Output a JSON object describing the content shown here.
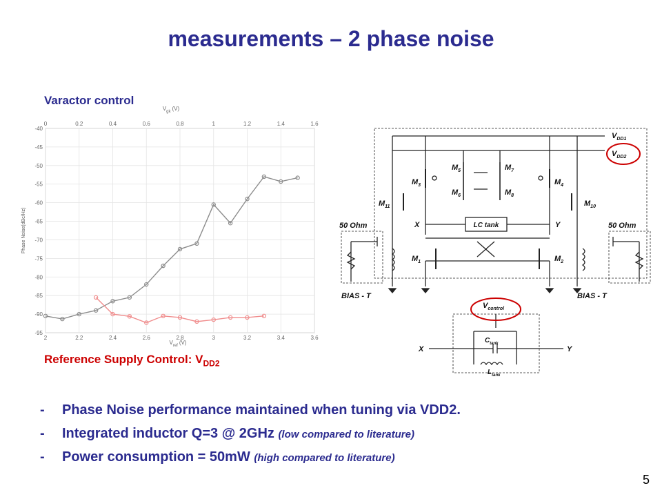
{
  "slide": {
    "title": "measurements – 2 phase noise",
    "varactor_label": "Varactor control",
    "reference_label": "Reference Supply Control: V",
    "reference_sub": "DD2",
    "page_number": "5"
  },
  "bullets": [
    {
      "dash": "-",
      "text": "Phase Noise performance maintained when tuning via VDD2.",
      "note": ""
    },
    {
      "dash": "-",
      "text": "Integrated inductor Q=3 @ 2GHz ",
      "note": "(low compared to literature)"
    },
    {
      "dash": "-",
      "text": "Power consumption = 50mW ",
      "note": "(high compared to literature)"
    }
  ],
  "colors": {
    "title": "#2b2b8f",
    "reference": "#cc0000",
    "gray_series": "#8c8c8c",
    "red_series": "#f08c8c"
  },
  "chart_data": {
    "type": "line",
    "ylabel": "Phase Noise(dBc/Hz)",
    "ylim": [
      -95,
      -40
    ],
    "yticks": [
      "-40",
      "-45",
      "-50",
      "-55",
      "-60",
      "-65",
      "-70",
      "-75",
      "-80",
      "-85",
      "-90",
      "-95"
    ],
    "x_bottom": {
      "label": "V",
      "label_sub": "ref",
      "label_unit": "(V)",
      "lim": [
        2,
        3.6
      ],
      "ticks": [
        "2",
        "2.2",
        "2.4",
        "2.6",
        "2.8",
        "3",
        "3.2",
        "3.4",
        "3.6"
      ]
    },
    "x_top": {
      "label": "V",
      "label_sub": "gk",
      "label_unit": "(V)",
      "lim": [
        0,
        1.6
      ],
      "ticks": [
        "0",
        "0.2",
        "0.4",
        "0.6",
        "0.8",
        "1",
        "1.2",
        "1.4",
        "1.6"
      ]
    },
    "grid": true,
    "series": [
      {
        "axis": "top",
        "color": "gray",
        "x": [
          0,
          0.1,
          0.2,
          0.3,
          0.4,
          0.5,
          0.6,
          0.7,
          0.8,
          0.9,
          1.0,
          1.1,
          1.2,
          1.3,
          1.4,
          1.5
        ],
        "y": [
          -90.5,
          -91.3,
          -90,
          -89,
          -86.5,
          -85.5,
          -82,
          -77,
          -72.5,
          -71,
          -60.5,
          -65.5,
          -59,
          -53,
          -54.3,
          -53.3
        ]
      },
      {
        "axis": "bottom",
        "color": "red",
        "x": [
          2.3,
          2.4,
          2.5,
          2.6,
          2.7,
          2.8,
          2.9,
          3.0,
          3.1,
          3.2,
          3.3
        ],
        "y": [
          -85.5,
          -90,
          -90.6,
          -92.3,
          -90.5,
          -90.9,
          -92,
          -91.5,
          -90.9,
          -90.9,
          -90.5
        ]
      }
    ]
  },
  "schematic": {
    "vdd1": "V",
    "vdd1_sub": "DD1",
    "vdd2": "V",
    "vdd2_sub": "DD2",
    "m1": "M",
    "m1_sub": "1",
    "m2": "M",
    "m2_sub": "2",
    "m3": "M",
    "m3_sub": "3",
    "m4": "M",
    "m4_sub": "4",
    "m5": "M",
    "m5_sub": "5",
    "m6": "M",
    "m6_sub": "6",
    "m7": "M",
    "m7_sub": "7",
    "m8": "M",
    "m8_sub": "8",
    "m10": "M",
    "m10_sub": "10",
    "m11": "M",
    "m11_sub": "11",
    "x": "X",
    "y": "Y",
    "lc_tank": "LC tank",
    "ohm_left": "50 Ohm",
    "ohm_right": "50 Ohm",
    "bias_left": "BIAS - T",
    "bias_right": "BIAS - T",
    "vcontrol": "V",
    "vcontrol_sub": "control",
    "ctank": "C",
    "ctank_sub": "tank",
    "ltank": "L",
    "ltank_sub": "tank",
    "x2": "X",
    "y2": "Y"
  }
}
